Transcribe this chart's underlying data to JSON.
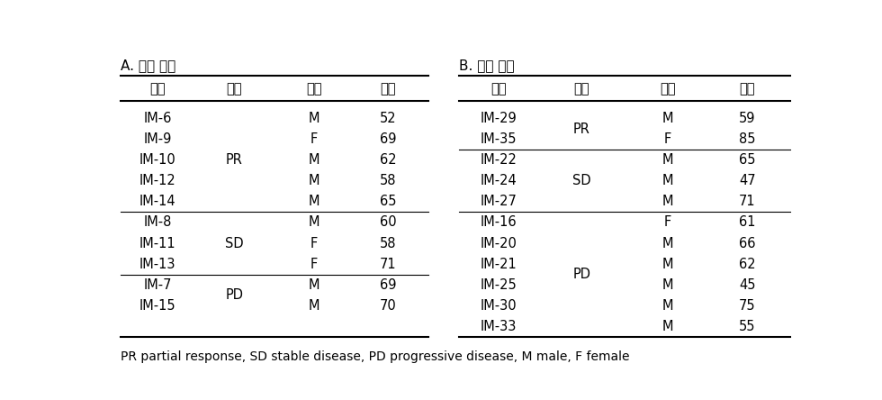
{
  "title_A": "A. 훈련 집합",
  "title_B": "B. 검증 집합",
  "headers": [
    "번호",
    "그룹",
    "성별",
    "나이"
  ],
  "train_data": [
    [
      "IM-6",
      "",
      "M",
      "52"
    ],
    [
      "IM-9",
      "",
      "F",
      "69"
    ],
    [
      "IM-10",
      "",
      "M",
      "62"
    ],
    [
      "IM-12",
      "",
      "M",
      "58"
    ],
    [
      "IM-14",
      "",
      "M",
      "65"
    ],
    [
      "IM-8",
      "",
      "M",
      "60"
    ],
    [
      "IM-11",
      "",
      "F",
      "58"
    ],
    [
      "IM-13",
      "",
      "F",
      "71"
    ],
    [
      "IM-7",
      "",
      "M",
      "69"
    ],
    [
      "IM-15",
      "",
      "M",
      "70"
    ]
  ],
  "test_data": [
    [
      "IM-29",
      "",
      "M",
      "59"
    ],
    [
      "IM-35",
      "",
      "F",
      "85"
    ],
    [
      "IM-22",
      "",
      "M",
      "65"
    ],
    [
      "IM-24",
      "",
      "M",
      "47"
    ],
    [
      "IM-27",
      "",
      "M",
      "71"
    ],
    [
      "IM-16",
      "",
      "F",
      "61"
    ],
    [
      "IM-20",
      "",
      "M",
      "66"
    ],
    [
      "IM-21",
      "",
      "M",
      "62"
    ],
    [
      "IM-25",
      "",
      "M",
      "45"
    ],
    [
      "IM-30",
      "",
      "M",
      "75"
    ],
    [
      "IM-33",
      "",
      "M",
      "55"
    ]
  ],
  "group_train": [
    {
      "label": "PR",
      "r_start": 0,
      "r_end": 4
    },
    {
      "label": "SD",
      "r_start": 5,
      "r_end": 7
    },
    {
      "label": "PD",
      "r_start": 8,
      "r_end": 9
    }
  ],
  "group_test": [
    {
      "label": "PR",
      "r_start": 0,
      "r_end": 1
    },
    {
      "label": "SD",
      "r_start": 2,
      "r_end": 4
    },
    {
      "label": "PD",
      "r_start": 5,
      "r_end": 10
    }
  ],
  "divider_rows_train": [
    4,
    7
  ],
  "divider_rows_test": [
    1,
    4
  ],
  "footnote": "PR partial response, SD stable disease, PD progressive disease, M male, F female",
  "bg_color": "#ffffff",
  "text_color": "#000000",
  "font_size": 10.5,
  "header_font_size": 10.5,
  "title_font_size": 11,
  "footnote_font_size": 10.0
}
